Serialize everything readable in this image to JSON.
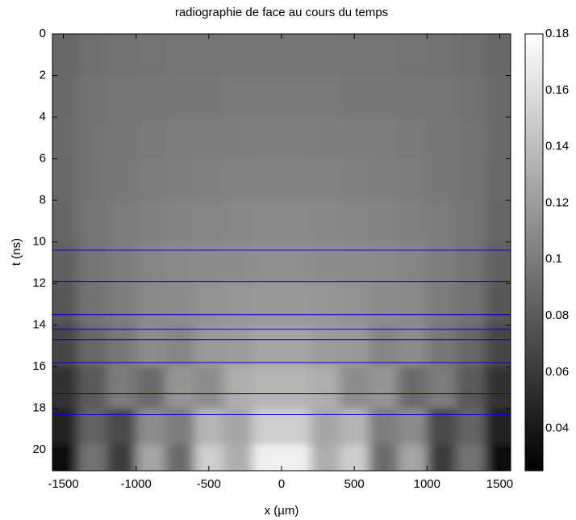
{
  "chart_data": {
    "type": "heatmap",
    "title": "radiographie de face au cours du temps",
    "xlabel": "x (µm)",
    "ylabel": "t (ns)",
    "xlim": [
      -1575,
      1575
    ],
    "xticks": [
      -1500,
      -1000,
      -500,
      0,
      500,
      1000,
      1500
    ],
    "ylim": [
      0,
      21
    ],
    "y_reversed": true,
    "yticks": [
      0,
      2,
      4,
      6,
      8,
      10,
      12,
      14,
      16,
      18,
      20
    ],
    "clim": [
      0.025,
      0.18
    ],
    "cticks": [
      0.04,
      0.06,
      0.08,
      0.1,
      0.12,
      0.14,
      0.16,
      0.18
    ],
    "colormap": "gray",
    "x": [
      -1500,
      -1300,
      -1100,
      -900,
      -700,
      -500,
      -300,
      -100,
      100,
      300,
      500,
      700,
      900,
      1100,
      1300,
      1500
    ],
    "t": [
      1,
      3,
      5,
      7,
      9,
      11,
      13,
      15,
      17,
      19,
      20.5
    ],
    "z": [
      [
        0.088,
        0.092,
        0.094,
        0.095,
        0.096,
        0.096,
        0.097,
        0.097,
        0.097,
        0.097,
        0.096,
        0.096,
        0.095,
        0.094,
        0.092,
        0.088
      ],
      [
        0.09,
        0.094,
        0.096,
        0.097,
        0.098,
        0.098,
        0.099,
        0.099,
        0.099,
        0.099,
        0.098,
        0.098,
        0.097,
        0.096,
        0.094,
        0.09
      ],
      [
        0.09,
        0.095,
        0.097,
        0.099,
        0.1,
        0.101,
        0.101,
        0.102,
        0.102,
        0.101,
        0.101,
        0.1,
        0.099,
        0.097,
        0.095,
        0.09
      ],
      [
        0.089,
        0.095,
        0.098,
        0.1,
        0.102,
        0.103,
        0.104,
        0.104,
        0.104,
        0.104,
        0.103,
        0.102,
        0.1,
        0.098,
        0.095,
        0.089
      ],
      [
        0.087,
        0.096,
        0.1,
        0.103,
        0.105,
        0.106,
        0.107,
        0.108,
        0.108,
        0.107,
        0.106,
        0.105,
        0.103,
        0.1,
        0.096,
        0.087
      ],
      [
        0.084,
        0.096,
        0.101,
        0.106,
        0.108,
        0.11,
        0.111,
        0.112,
        0.112,
        0.111,
        0.11,
        0.108,
        0.106,
        0.101,
        0.096,
        0.084
      ],
      [
        0.078,
        0.094,
        0.1,
        0.108,
        0.11,
        0.114,
        0.116,
        0.118,
        0.118,
        0.116,
        0.114,
        0.11,
        0.108,
        0.1,
        0.094,
        0.078
      ],
      [
        0.068,
        0.088,
        0.098,
        0.11,
        0.106,
        0.118,
        0.12,
        0.125,
        0.125,
        0.12,
        0.118,
        0.106,
        0.11,
        0.098,
        0.088,
        0.068
      ],
      [
        0.055,
        0.08,
        0.1,
        0.09,
        0.115,
        0.11,
        0.13,
        0.135,
        0.135,
        0.13,
        0.11,
        0.115,
        0.09,
        0.1,
        0.08,
        0.055
      ],
      [
        0.045,
        0.085,
        0.07,
        0.11,
        0.1,
        0.135,
        0.125,
        0.15,
        0.15,
        0.125,
        0.135,
        0.1,
        0.11,
        0.07,
        0.085,
        0.045
      ],
      [
        0.03,
        0.095,
        0.06,
        0.125,
        0.09,
        0.15,
        0.13,
        0.17,
        0.17,
        0.13,
        0.15,
        0.09,
        0.125,
        0.06,
        0.095,
        0.03
      ]
    ],
    "hlines": {
      "color": "#0000cc",
      "values": [
        10.4,
        11.9,
        13.5,
        14.2,
        14.7,
        15.8,
        17.3,
        18.3
      ]
    }
  }
}
